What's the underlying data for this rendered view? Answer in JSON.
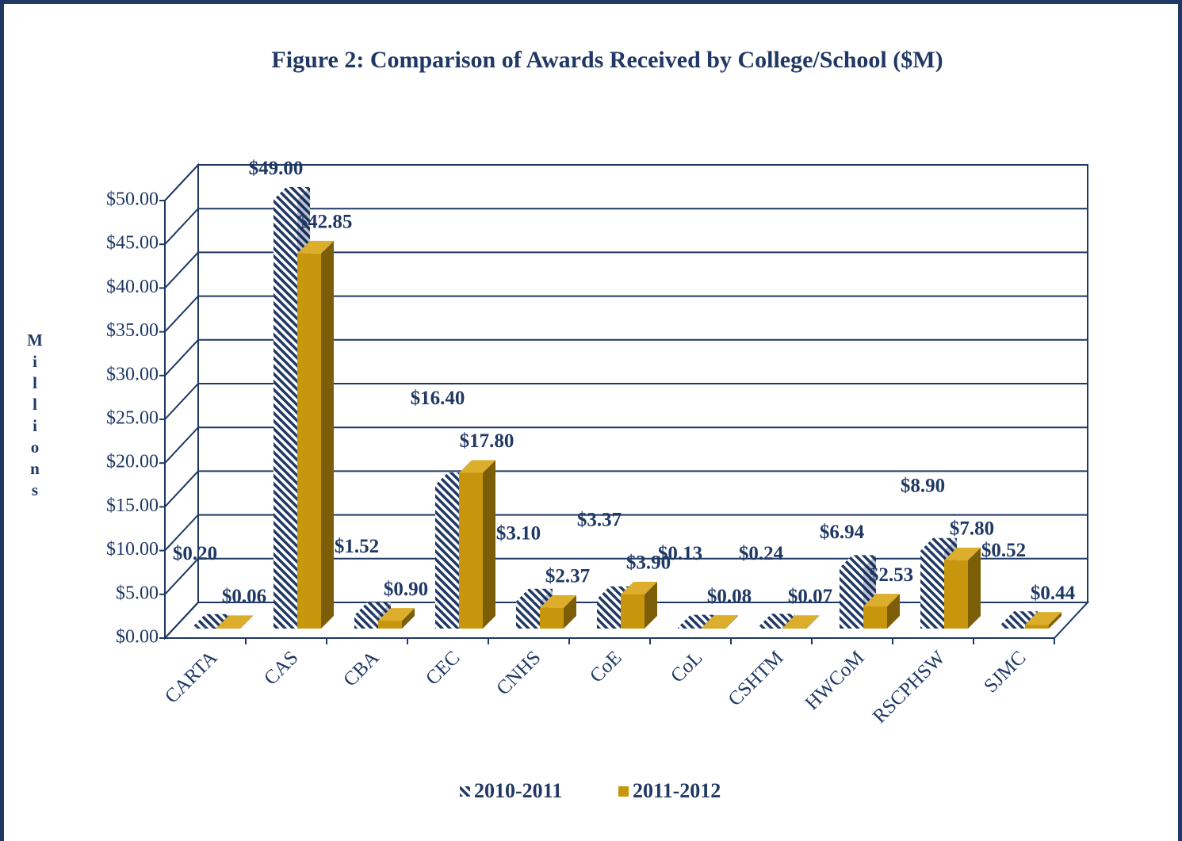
{
  "chart_data": {
    "type": "bar3d",
    "title": "Figure 2:  Comparison of Awards Received by College/School ($M)",
    "y_label": "Millions",
    "categories": [
      "CARTA",
      "CAS",
      "CBA",
      "CEC",
      "CNHS",
      "CoE",
      "CoL",
      "CSHTM",
      "HWCoM",
      "RSCPHSW",
      "SJMC"
    ],
    "series": [
      {
        "name": "2010-2011",
        "color": "#1f3864",
        "pattern": "hatch",
        "values": [
          0.2,
          49.0,
          1.52,
          16.4,
          3.1,
          3.37,
          0.13,
          0.24,
          6.94,
          8.9,
          0.52
        ],
        "value_labels": [
          "$0.20",
          "$49.00",
          "$1.52",
          "$16.40",
          "$3.10",
          "$3.37",
          "$0.13",
          "$0.24",
          "$6.94",
          "$8.90",
          "$0.52"
        ]
      },
      {
        "name": "2011-2012",
        "color": "#c8960c",
        "values": [
          0.06,
          42.85,
          0.9,
          17.8,
          2.37,
          3.9,
          0.08,
          0.07,
          2.53,
          7.8,
          0.44
        ],
        "value_labels": [
          "$0.06",
          "$42.85",
          "$0.90",
          "$17.80",
          "$2.37",
          "$3.90",
          "$0.08",
          "$0.07",
          "$2.53",
          "$7.80",
          "$0.44"
        ]
      }
    ],
    "ylim": [
      0,
      50
    ],
    "yticks": [
      {
        "value": 0,
        "label": "$0.00"
      },
      {
        "value": 5,
        "label": "$5.00"
      },
      {
        "value": 10,
        "label": "$10.00"
      },
      {
        "value": 15,
        "label": "$15.00"
      },
      {
        "value": 20,
        "label": "$20.00"
      },
      {
        "value": 25,
        "label": "$25.00"
      },
      {
        "value": 30,
        "label": "$30.00"
      },
      {
        "value": 35,
        "label": "$35.00"
      },
      {
        "value": 40,
        "label": "$40.00"
      },
      {
        "value": 45,
        "label": "$45.00"
      },
      {
        "value": 50,
        "label": "$50.00"
      }
    ],
    "grid": true,
    "legend": "bottom"
  }
}
